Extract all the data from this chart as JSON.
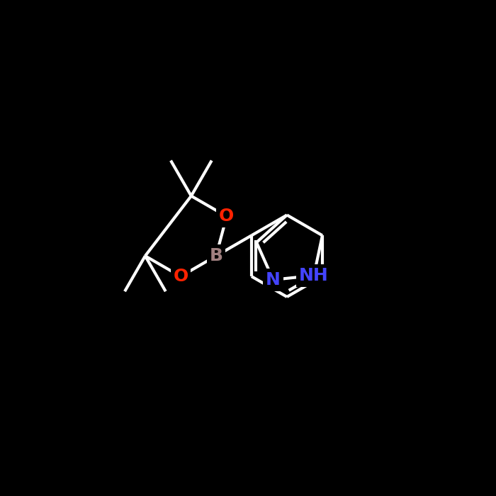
{
  "background_color": "#000000",
  "bond_color": "#ffffff",
  "bond_width": 3.0,
  "atom_colors": {
    "N": "#4444ff",
    "O": "#ff2200",
    "B": "#a08080",
    "C": "#ffffff"
  },
  "label_fontsize": 18,
  "figsize": [
    7.0,
    7.0
  ],
  "dpi": 100
}
